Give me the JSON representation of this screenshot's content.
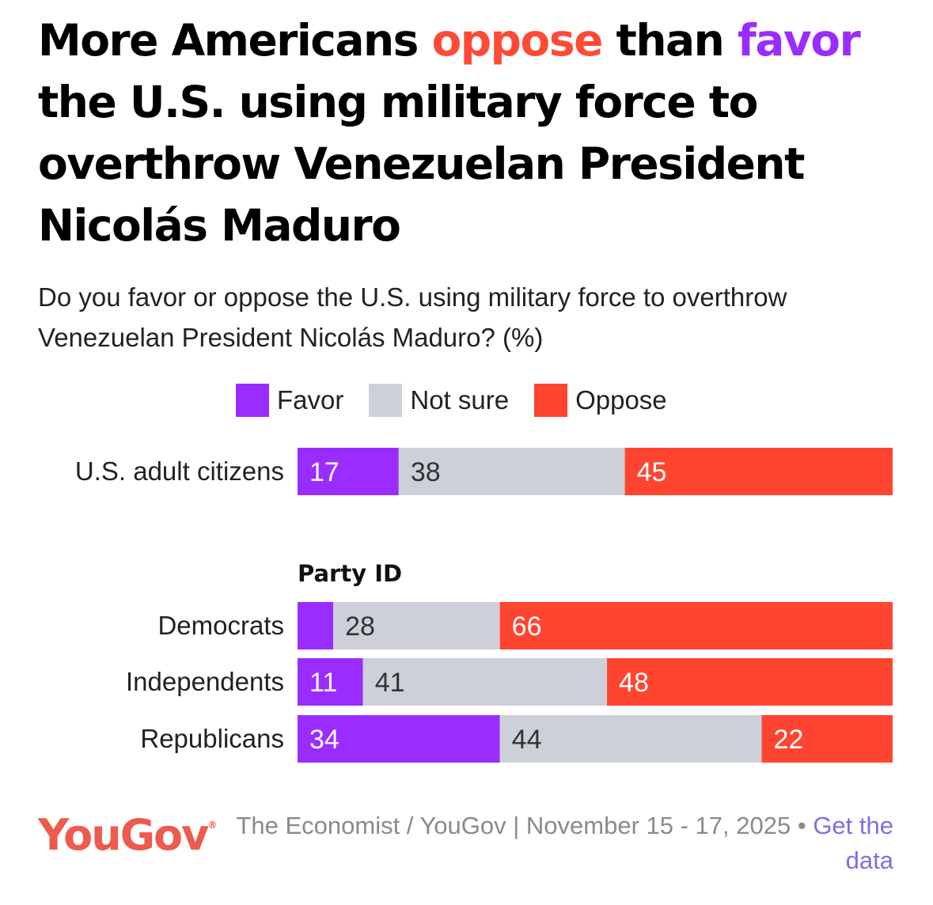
{
  "title": {
    "part1": "More Americans ",
    "highlight_oppose": "oppose",
    "part2": " than ",
    "highlight_favor": "favor",
    "part3": " the U.S. using military force to overthrow Venezuelan President Nicolás Maduro"
  },
  "subtitle": "Do you favor or oppose the U.S. using military force to overthrow Venezuelan President Nicolás Maduro? (%)",
  "colors": {
    "favor": "#9b2cff",
    "not_sure": "#cdd0d8",
    "oppose": "#ff4530",
    "label_light": "#ffffff",
    "label_dark": "#333333"
  },
  "legend": [
    {
      "key": "favor",
      "label": "Favor"
    },
    {
      "key": "not_sure",
      "label": "Not sure"
    },
    {
      "key": "oppose",
      "label": "Oppose"
    }
  ],
  "chart_data": {
    "type": "bar",
    "orientation": "horizontal",
    "stacked": true,
    "series": [
      {
        "name": "Favor",
        "values": [
          17,
          6,
          11,
          34
        ],
        "labels": [
          "17",
          "",
          "11",
          "34"
        ]
      },
      {
        "name": "Not sure",
        "values": [
          38,
          28,
          41,
          44
        ],
        "labels": [
          "38",
          "28",
          "41",
          "44"
        ]
      },
      {
        "name": "Oppose",
        "values": [
          45,
          66,
          48,
          22
        ],
        "labels": [
          "45",
          "66",
          "48",
          "22"
        ]
      }
    ],
    "categories": [
      "U.S. adult citizens",
      "Democrats",
      "Independents",
      "Republicans"
    ],
    "groups": [
      {
        "heading": "",
        "rows": [
          0
        ]
      },
      {
        "heading": "Party ID",
        "rows": [
          1,
          2,
          3
        ]
      }
    ],
    "xlim": [
      0,
      100
    ],
    "unit": "%"
  },
  "footer": {
    "logo": "YouGov",
    "logo_mark": "®",
    "source": "The Economist / YouGov | November 15 - 17, 2025 • ",
    "link": "Get the data"
  }
}
